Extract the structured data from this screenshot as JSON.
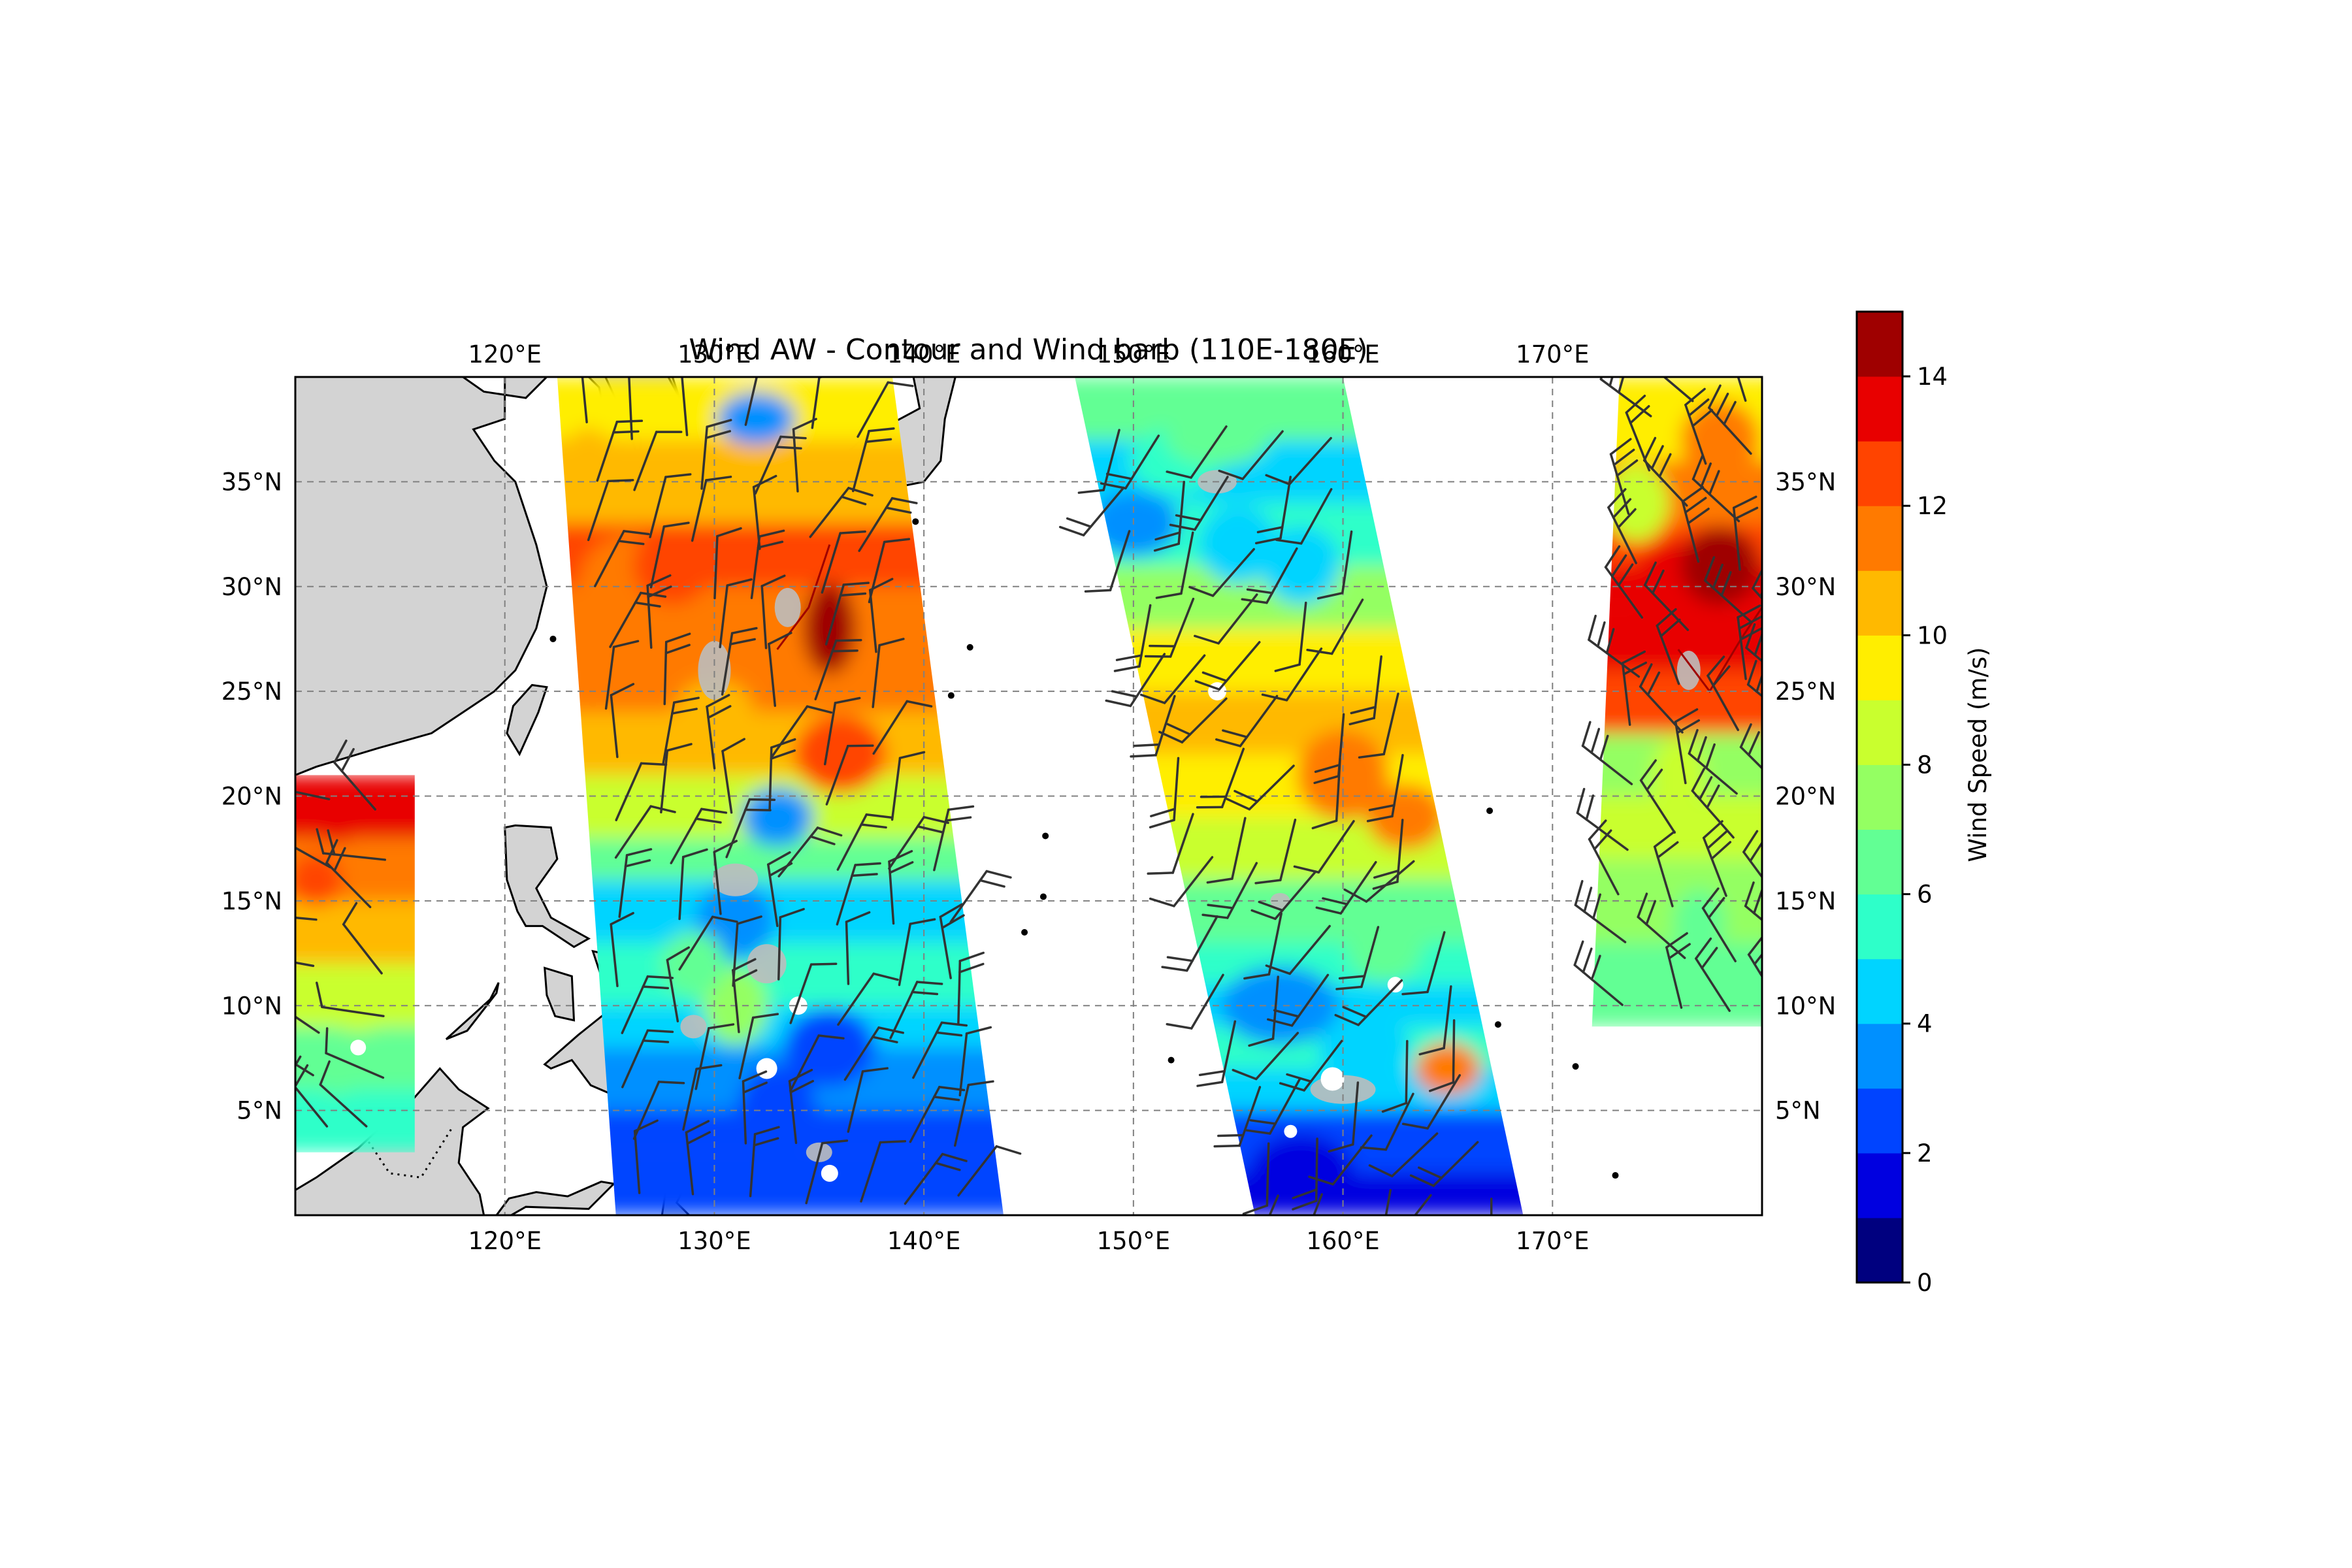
{
  "title": "Wind AW - Contour and Wind barb (110E-180E)",
  "map": {
    "lon_range": [
      110,
      180
    ],
    "lat_range": [
      0,
      40
    ],
    "land_color": "#d3d3d3",
    "grid": true,
    "x_ticks": [
      120,
      130,
      140,
      150,
      160,
      170
    ],
    "x_tick_labels": [
      "120°E",
      "130°E",
      "140°E",
      "150°E",
      "160°E",
      "170°E"
    ],
    "y_ticks": [
      5,
      10,
      15,
      20,
      25,
      30,
      35
    ],
    "y_tick_labels": [
      "5°N",
      "10°N",
      "15°N",
      "20°N",
      "25°N",
      "30°N",
      "35°N"
    ]
  },
  "colorbar": {
    "label": "Wind Speed (m/s)",
    "range": [
      0,
      15
    ],
    "ticks": [
      0,
      2,
      4,
      6,
      8,
      10,
      12,
      14
    ],
    "tick_labels": [
      "0",
      "2",
      "4",
      "6",
      "8",
      "10",
      "12",
      "14"
    ],
    "colors": [
      "#00007f",
      "#0000e0",
      "#0044ff",
      "#0090ff",
      "#00d4ff",
      "#2effc9",
      "#62ff94",
      "#94ff62",
      "#c9ff2e",
      "#ffee00",
      "#ffb900",
      "#ff7a00",
      "#ff4400",
      "#e80000",
      "#9f0000"
    ]
  }
}
